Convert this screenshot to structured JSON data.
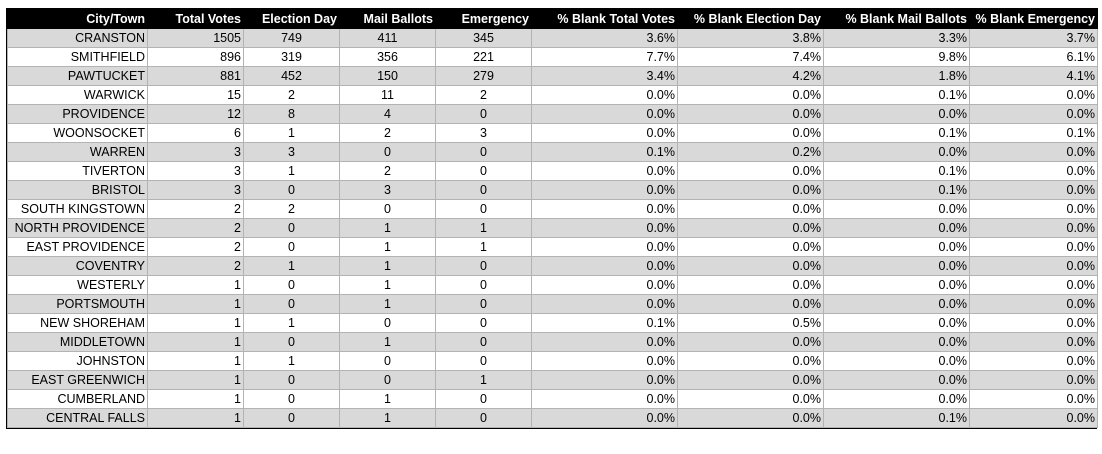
{
  "table": {
    "headers": [
      "City/Town",
      "Total Votes",
      "Election Day",
      "Mail Ballots",
      "Emergency",
      "% Blank Total Votes",
      "% Blank Election Day",
      "% Blank Mail Ballots",
      "% Blank Emergency"
    ],
    "rows": [
      [
        "CRANSTON",
        "1505",
        "749",
        "411",
        "345",
        "3.6%",
        "3.8%",
        "3.3%",
        "3.7%"
      ],
      [
        "SMITHFIELD",
        "896",
        "319",
        "356",
        "221",
        "7.7%",
        "7.4%",
        "9.8%",
        "6.1%"
      ],
      [
        "PAWTUCKET",
        "881",
        "452",
        "150",
        "279",
        "3.4%",
        "4.2%",
        "1.8%",
        "4.1%"
      ],
      [
        "WARWICK",
        "15",
        "2",
        "11",
        "2",
        "0.0%",
        "0.0%",
        "0.1%",
        "0.0%"
      ],
      [
        "PROVIDENCE",
        "12",
        "8",
        "4",
        "0",
        "0.0%",
        "0.0%",
        "0.0%",
        "0.0%"
      ],
      [
        "WOONSOCKET",
        "6",
        "1",
        "2",
        "3",
        "0.0%",
        "0.0%",
        "0.1%",
        "0.1%"
      ],
      [
        "WARREN",
        "3",
        "3",
        "0",
        "0",
        "0.1%",
        "0.2%",
        "0.0%",
        "0.0%"
      ],
      [
        "TIVERTON",
        "3",
        "1",
        "2",
        "0",
        "0.0%",
        "0.0%",
        "0.1%",
        "0.0%"
      ],
      [
        "BRISTOL",
        "3",
        "0",
        "3",
        "0",
        "0.0%",
        "0.0%",
        "0.1%",
        "0.0%"
      ],
      [
        "SOUTH KINGSTOWN",
        "2",
        "2",
        "0",
        "0",
        "0.0%",
        "0.0%",
        "0.0%",
        "0.0%"
      ],
      [
        "NORTH PROVIDENCE",
        "2",
        "0",
        "1",
        "1",
        "0.0%",
        "0.0%",
        "0.0%",
        "0.0%"
      ],
      [
        "EAST PROVIDENCE",
        "2",
        "0",
        "1",
        "1",
        "0.0%",
        "0.0%",
        "0.0%",
        "0.0%"
      ],
      [
        "COVENTRY",
        "2",
        "1",
        "1",
        "0",
        "0.0%",
        "0.0%",
        "0.0%",
        "0.0%"
      ],
      [
        "WESTERLY",
        "1",
        "0",
        "1",
        "0",
        "0.0%",
        "0.0%",
        "0.0%",
        "0.0%"
      ],
      [
        "PORTSMOUTH",
        "1",
        "0",
        "1",
        "0",
        "0.0%",
        "0.0%",
        "0.0%",
        "0.0%"
      ],
      [
        "NEW SHOREHAM",
        "1",
        "1",
        "0",
        "0",
        "0.1%",
        "0.5%",
        "0.0%",
        "0.0%"
      ],
      [
        "MIDDLETOWN",
        "1",
        "0",
        "1",
        "0",
        "0.0%",
        "0.0%",
        "0.0%",
        "0.0%"
      ],
      [
        "JOHNSTON",
        "1",
        "1",
        "0",
        "0",
        "0.0%",
        "0.0%",
        "0.0%",
        "0.0%"
      ],
      [
        "EAST GREENWICH",
        "1",
        "0",
        "0",
        "1",
        "0.0%",
        "0.0%",
        "0.0%",
        "0.0%"
      ],
      [
        "CUMBERLAND",
        "1",
        "0",
        "1",
        "0",
        "0.0%",
        "0.0%",
        "0.0%",
        "0.0%"
      ],
      [
        "CENTRAL FALLS",
        "1",
        "0",
        "1",
        "0",
        "0.0%",
        "0.0%",
        "0.1%",
        "0.0%"
      ]
    ]
  },
  "colors": {
    "header_bg": "#000000",
    "header_text": "#ffffff",
    "shaded_row": "#d9d9d9",
    "plain_row": "#ffffff",
    "grid_line": "#b3b3b3"
  }
}
